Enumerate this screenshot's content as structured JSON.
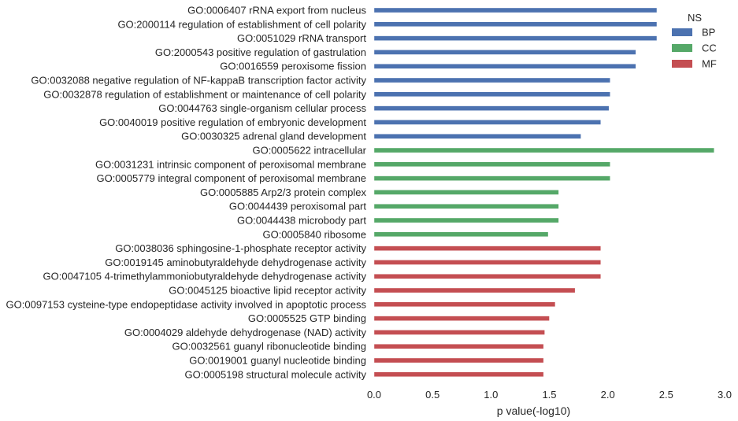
{
  "chart_data": {
    "type": "bar",
    "orientation": "horizontal",
    "xlabel": "p value(-log10)",
    "ylabel": "",
    "xlim": [
      0,
      3.0
    ],
    "x_ticks": [
      "0.0",
      "0.5",
      "1.0",
      "1.5",
      "2.0",
      "2.5",
      "3.0"
    ],
    "grid": false,
    "legend": {
      "title": "NS",
      "placement": "top-right",
      "entries": [
        {
          "name": "BP",
          "color": "#4c72b0"
        },
        {
          "name": "CC",
          "color": "#55a868"
        },
        {
          "name": "MF",
          "color": "#c44e52"
        }
      ]
    },
    "bars": [
      {
        "label": "GO:0006407 rRNA export from nucleus",
        "value": 2.42,
        "group": "BP"
      },
      {
        "label": "GO:2000114 regulation of establishment of cell polarity",
        "value": 2.42,
        "group": "BP"
      },
      {
        "label": "GO:0051029 rRNA transport",
        "value": 2.42,
        "group": "BP"
      },
      {
        "label": "GO:2000543 positive regulation of gastrulation",
        "value": 2.24,
        "group": "BP"
      },
      {
        "label": "GO:0016559 peroxisome fission",
        "value": 2.24,
        "group": "BP"
      },
      {
        "label": "GO:0032088 negative regulation of NF-kappaB transcription factor activity",
        "value": 2.02,
        "group": "BP"
      },
      {
        "label": "GO:0032878 regulation of establishment or maintenance of cell polarity",
        "value": 2.02,
        "group": "BP"
      },
      {
        "label": "GO:0044763 single-organism cellular process",
        "value": 2.01,
        "group": "BP"
      },
      {
        "label": "GO:0040019 positive regulation of embryonic development",
        "value": 1.94,
        "group": "BP"
      },
      {
        "label": "GO:0030325 adrenal gland development",
        "value": 1.77,
        "group": "BP"
      },
      {
        "label": "GO:0005622 intracellular",
        "value": 2.91,
        "group": "CC"
      },
      {
        "label": "GO:0031231 intrinsic component of peroxisomal membrane",
        "value": 2.02,
        "group": "CC"
      },
      {
        "label": "GO:0005779 integral component of peroxisomal membrane",
        "value": 2.02,
        "group": "CC"
      },
      {
        "label": "GO:0005885 Arp2/3 protein complex",
        "value": 1.58,
        "group": "CC"
      },
      {
        "label": "GO:0044439 peroxisomal part",
        "value": 1.58,
        "group": "CC"
      },
      {
        "label": "GO:0044438 microbody part",
        "value": 1.58,
        "group": "CC"
      },
      {
        "label": "GO:0005840 ribosome",
        "value": 1.49,
        "group": "CC"
      },
      {
        "label": "GO:0038036 sphingosine-1-phosphate receptor activity",
        "value": 1.94,
        "group": "MF"
      },
      {
        "label": "GO:0019145 aminobutyraldehyde dehydrogenase activity",
        "value": 1.94,
        "group": "MF"
      },
      {
        "label": "GO:0047105 4-trimethylammoniobutyraldehyde dehydrogenase activity",
        "value": 1.94,
        "group": "MF"
      },
      {
        "label": "GO:0045125 bioactive lipid receptor activity",
        "value": 1.72,
        "group": "MF"
      },
      {
        "label": "GO:0097153 cysteine-type endopeptidase activity involved in apoptotic process",
        "value": 1.55,
        "group": "MF"
      },
      {
        "label": "GO:0005525 GTP binding",
        "value": 1.5,
        "group": "MF"
      },
      {
        "label": "GO:0004029 aldehyde dehydrogenase (NAD) activity",
        "value": 1.46,
        "group": "MF"
      },
      {
        "label": "GO:0032561 guanyl ribonucleotide binding",
        "value": 1.45,
        "group": "MF"
      },
      {
        "label": "GO:0019001 guanyl nucleotide binding",
        "value": 1.45,
        "group": "MF"
      },
      {
        "label": "GO:0005198 structural molecule activity",
        "value": 1.45,
        "group": "MF"
      }
    ]
  }
}
